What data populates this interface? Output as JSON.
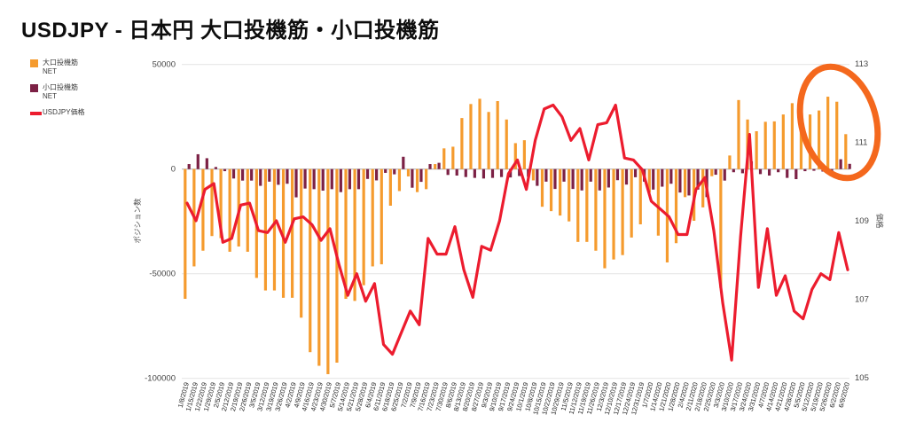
{
  "title": "USDJPY - 日本円 大口投機筋・小口投機筋",
  "colors": {
    "large_spec_bar": "#F59B2E",
    "small_spec_bar": "#7C2145",
    "price_line": "#EC1C2E",
    "annotation_ellipse": "#F4681D",
    "zero_line": "#b0b0b0",
    "gridline": "#e4e4e4",
    "tick_label": "#1a1a1a",
    "axis_value_label": "#444444"
  },
  "legend": [
    {
      "label": "大口投機筋NET",
      "color": "#F59B2E",
      "marker": "square"
    },
    {
      "label": "小口投機筋NET",
      "color": "#7C2145",
      "marker": "square"
    },
    {
      "label": "USDJPY価格",
      "color": "#EC1C2E",
      "marker": "line"
    }
  ],
  "chart_data": {
    "type": "bar",
    "subtype": "combo-dual-axis",
    "title": "USDJPY - 日本円 大口投機筋・小口投機筋",
    "grid": "horizontal-only",
    "legend_position": "top-left",
    "y_left": {
      "label": "ポジション数",
      "min": -100000,
      "max": 50000,
      "ticks": [
        50000,
        0,
        -50000,
        -100000
      ]
    },
    "y_right": {
      "label": "価格",
      "min": 105,
      "max": 113,
      "ticks": [
        113,
        111,
        109,
        107,
        105
      ]
    },
    "annotation": {
      "shape": "ellipse",
      "color": "#F4681D",
      "meaning": "highlight of recent large-speculator net-long bars at chart right edge"
    },
    "categories": [
      "1/8/2019",
      "1/15/2019",
      "1/22/2019",
      "1/29/2019",
      "2/5/2019",
      "2/12/2019",
      "2/19/2019",
      "2/26/2019",
      "3/5/2019",
      "3/12/2019",
      "3/19/2019",
      "3/26/2019",
      "4/2/2019",
      "4/9/2019",
      "4/16/2019",
      "4/23/2019",
      "4/30/2019",
      "5/7/2019",
      "5/14/2019",
      "5/21/2019",
      "5/28/2019",
      "6/4/2019",
      "6/11/2019",
      "6/18/2019",
      "6/25/2019",
      "7/2/2019",
      "7/9/2019",
      "7/16/2019",
      "7/23/2019",
      "7/30/2019",
      "8/6/2019",
      "8/13/2019",
      "8/20/2019",
      "8/27/2019",
      "9/3/2019",
      "9/10/2019",
      "9/17/2019",
      "9/24/2019",
      "10/1/2019",
      "10/8/2019",
      "10/15/2019",
      "10/22/2019",
      "10/29/2019",
      "11/5/2019",
      "11/12/2019",
      "11/19/2019",
      "11/26/2019",
      "12/3/2019",
      "12/10/2019",
      "12/17/2019",
      "12/24/2019",
      "12/31/2019",
      "1/7/2020",
      "1/14/2020",
      "1/21/2020",
      "1/28/2020",
      "2/4/2020",
      "2/11/2020",
      "2/18/2020",
      "2/25/2020",
      "3/3/2020",
      "3/10/2020",
      "3/17/2020",
      "3/24/2020",
      "3/31/2020",
      "4/7/2020",
      "4/14/2020",
      "4/21/2020",
      "4/28/2020",
      "5/5/2020",
      "5/12/2020",
      "5/19/2020",
      "5/26/2020",
      "6/2/2020",
      "6/9/2020"
    ],
    "series": [
      {
        "name": "大口投機筋NET",
        "type": "bar",
        "axis": "left",
        "color": "#F59B2E",
        "values": [
          -62000,
          -46500,
          -39000,
          -32000,
          -33000,
          -39500,
          -37000,
          -39500,
          -52000,
          -58000,
          -58000,
          -61500,
          -61500,
          -71000,
          -87500,
          -94000,
          -98000,
          -92500,
          -62000,
          -63000,
          -55500,
          -46500,
          -45500,
          -17500,
          -10500,
          -3500,
          -11000,
          -9600,
          2400,
          9900,
          10700,
          24400,
          31100,
          33600,
          27300,
          32500,
          23700,
          12400,
          13800,
          -5400,
          -18000,
          -20100,
          -22200,
          -25000,
          -34800,
          -34800,
          -39000,
          -47400,
          -43200,
          -41100,
          -32700,
          -26400,
          -11200,
          -31800,
          -44600,
          -35400,
          -13400,
          -24700,
          -18300,
          -3400,
          -56800,
          6500,
          33000,
          23700,
          18100,
          22600,
          22800,
          26100,
          31500,
          27000,
          26100,
          28000,
          34600,
          32200,
          16700
        ]
      },
      {
        "name": "小口投機筋NET",
        "type": "bar",
        "axis": "left",
        "color": "#7C2145",
        "values": [
          2400,
          7100,
          5200,
          1000,
          -1000,
          -4500,
          -5500,
          -5500,
          -8000,
          -6000,
          -7500,
          -7000,
          -13500,
          -9300,
          -9600,
          -10300,
          -9600,
          -11000,
          -9600,
          -9600,
          -4700,
          -5400,
          -1800,
          -2500,
          5900,
          -8900,
          -6100,
          2400,
          3000,
          -2800,
          -3100,
          -3800,
          -4200,
          -4500,
          -4200,
          -3800,
          -4000,
          -3300,
          -3700,
          -8000,
          -6000,
          -9500,
          -6000,
          -9500,
          -10200,
          -6000,
          -10200,
          -8800,
          -5300,
          -7400,
          -3900,
          -6000,
          -9800,
          -8400,
          -7000,
          -11200,
          -12600,
          -9800,
          -13400,
          -2700,
          -5500,
          -1500,
          -2000,
          3700,
          -2400,
          -3100,
          -1500,
          -4200,
          -4800,
          -1000,
          -800,
          -1200,
          -1500,
          4700,
          2500
        ]
      },
      {
        "name": "USDJPY価格",
        "type": "line",
        "axis": "right",
        "color": "#EC1C2E",
        "values": [
          109.45,
          109.0,
          109.8,
          109.95,
          108.45,
          108.55,
          109.4,
          109.45,
          108.75,
          108.7,
          109.0,
          108.45,
          109.05,
          109.1,
          108.9,
          108.5,
          108.8,
          107.9,
          107.1,
          107.65,
          106.95,
          107.4,
          105.85,
          105.6,
          106.15,
          106.7,
          106.35,
          108.55,
          108.15,
          108.15,
          108.85,
          107.75,
          107.05,
          108.35,
          108.25,
          109.0,
          110.2,
          110.55,
          109.8,
          111.05,
          111.85,
          111.95,
          111.65,
          111.05,
          111.35,
          110.55,
          111.45,
          111.5,
          111.95,
          110.6,
          110.55,
          110.3,
          109.5,
          109.3,
          109.1,
          108.65,
          108.65,
          109.8,
          110.1,
          108.75,
          106.9,
          105.45,
          108.6,
          111.2,
          107.3,
          108.8,
          107.1,
          107.6,
          106.7,
          106.5,
          107.25,
          107.65,
          107.5,
          108.7,
          107.75
        ]
      }
    ]
  }
}
